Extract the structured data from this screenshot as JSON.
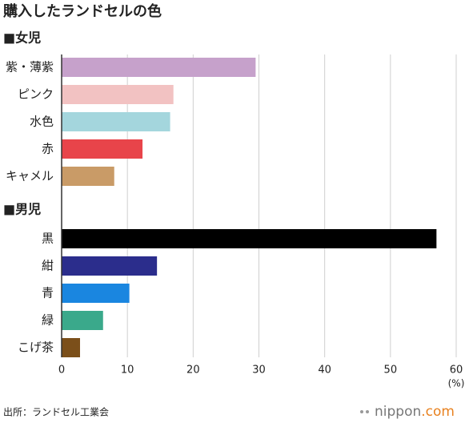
{
  "title": "購入したランドセルの色",
  "chart_data": {
    "type": "bar",
    "orientation": "horizontal",
    "groups": [
      {
        "name": "■女児",
        "categories": [
          "紫・薄紫",
          "ピンク",
          "水色",
          "赤",
          "キャメル"
        ],
        "values": [
          29.5,
          17,
          16.5,
          12.3,
          8
        ],
        "colors": [
          "#c6a1cb",
          "#f2c2c2",
          "#a4d6dd",
          "#e8444a",
          "#c99b67"
        ]
      },
      {
        "name": "■男児",
        "categories": [
          "黒",
          "紺",
          "青",
          "緑",
          "こげ茶"
        ],
        "values": [
          57,
          14.5,
          10.3,
          6.3,
          2.8
        ],
        "colors": [
          "#000000",
          "#2b2d8c",
          "#1a86e0",
          "#3aa98b",
          "#7b4f1a"
        ]
      }
    ],
    "xlim": [
      0,
      60
    ],
    "xticks": [
      0,
      10,
      20,
      30,
      40,
      50,
      60
    ],
    "x_label": "(%)",
    "grid": true
  },
  "source": "出所：ランドセル工業会",
  "logo": {
    "name": "nippon",
    "suffix": ".com"
  }
}
